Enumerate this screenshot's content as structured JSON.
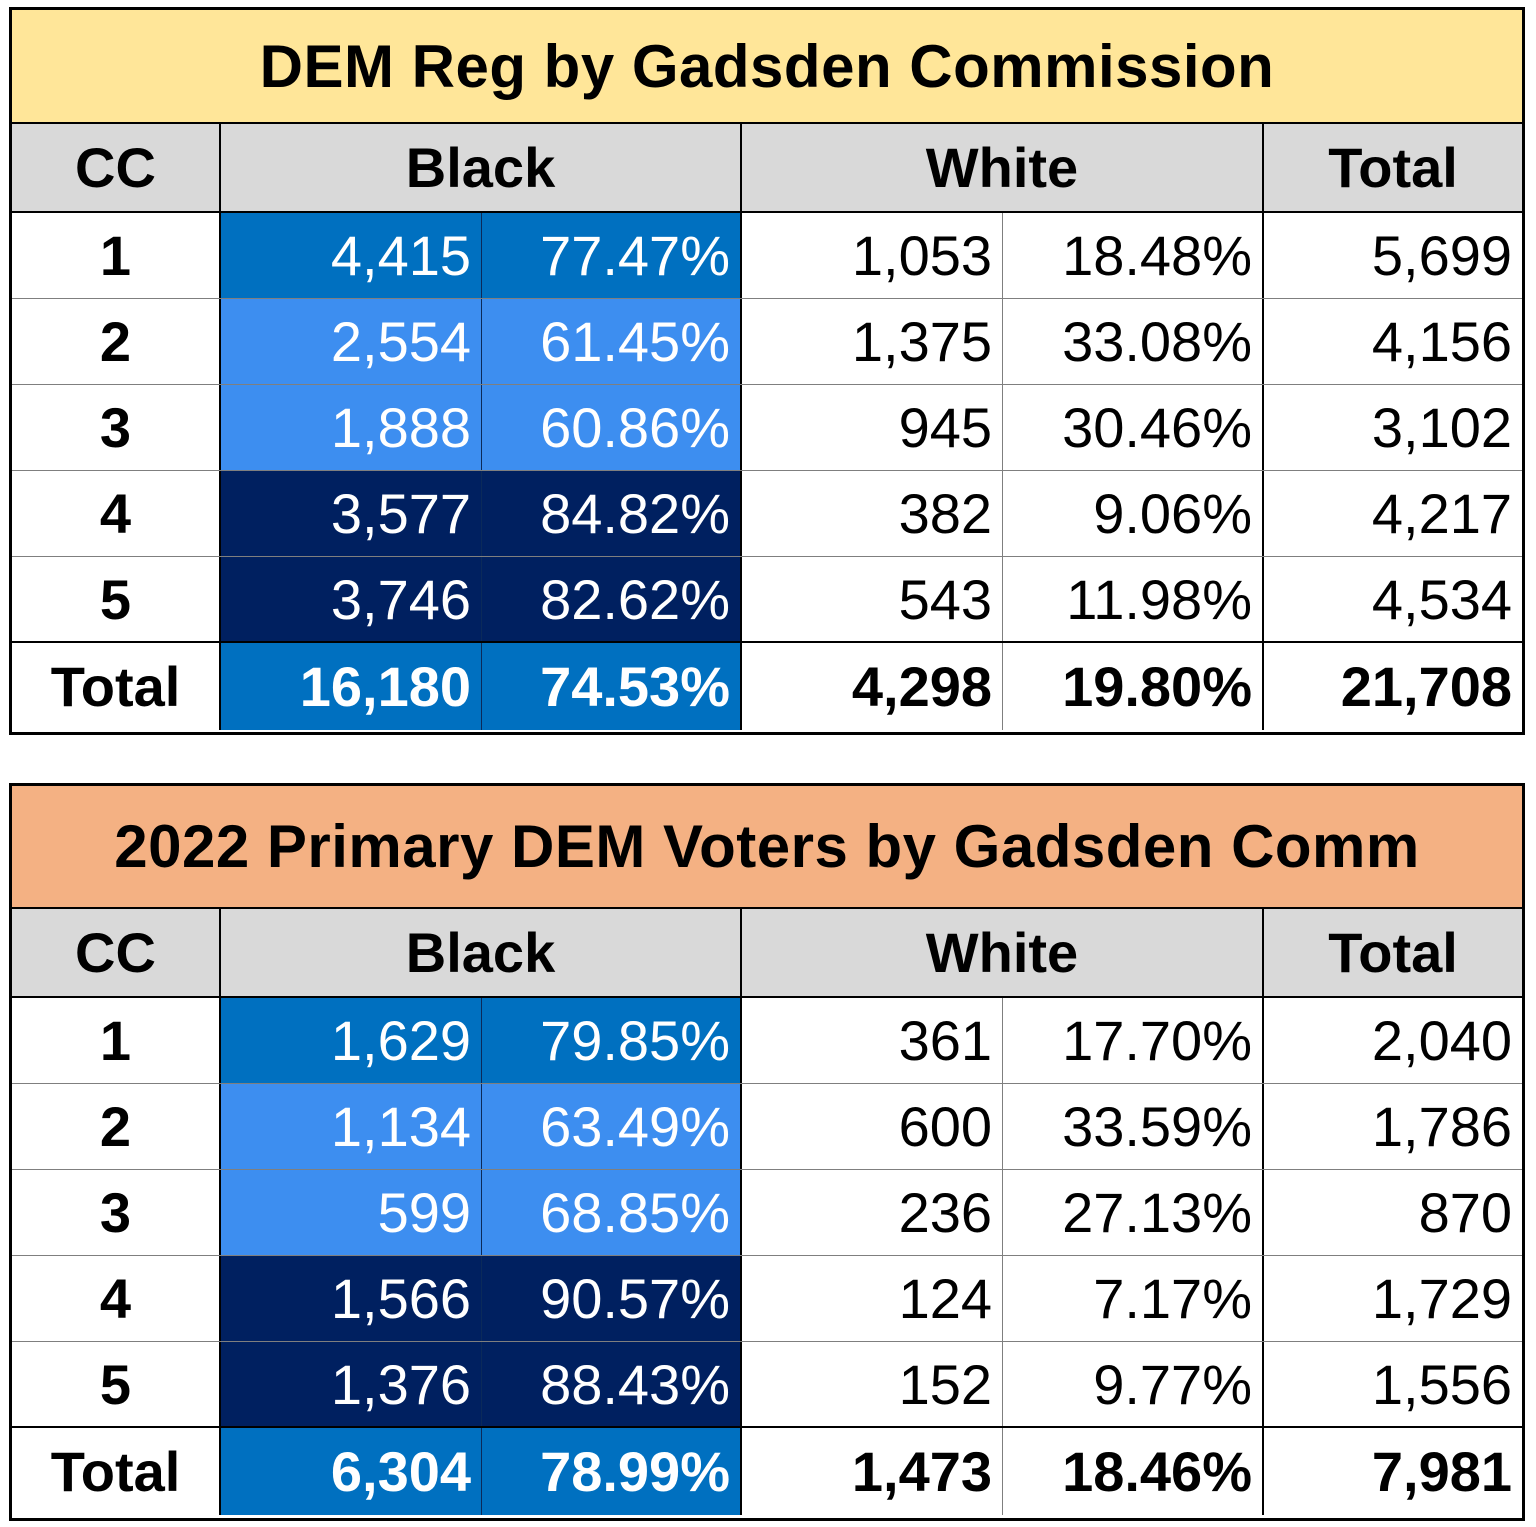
{
  "colors": {
    "title_reg_bg": "#ffe699",
    "title_primary_bg": "#f4b183",
    "header_bg": "#d9d9d9",
    "blue_mid": "#0070c0",
    "blue_light": "#3d8ef0",
    "blue_dark": "#002060"
  },
  "headers": {
    "cc": "CC",
    "black": "Black",
    "white": "White",
    "total": "Total"
  },
  "tables": [
    {
      "title": "DEM Reg by Gadsden Commission",
      "rows": [
        {
          "cc": "1",
          "black": "4,415",
          "black_pct": "77.47%",
          "white": "1,053",
          "white_pct": "18.48%",
          "total": "5,699",
          "shade": "blue_mid"
        },
        {
          "cc": "2",
          "black": "2,554",
          "black_pct": "61.45%",
          "white": "1,375",
          "white_pct": "33.08%",
          "total": "4,156",
          "shade": "blue_light"
        },
        {
          "cc": "3",
          "black": "1,888",
          "black_pct": "60.86%",
          "white": "945",
          "white_pct": "30.46%",
          "total": "3,102",
          "shade": "blue_light"
        },
        {
          "cc": "4",
          "black": "3,577",
          "black_pct": "84.82%",
          "white": "382",
          "white_pct": "9.06%",
          "total": "4,217",
          "shade": "blue_dark"
        },
        {
          "cc": "5",
          "black": "3,746",
          "black_pct": "82.62%",
          "white": "543",
          "white_pct": "11.98%",
          "total": "4,534",
          "shade": "blue_dark"
        }
      ],
      "total": {
        "cc": "Total",
        "black": "16,180",
        "black_pct": "74.53%",
        "white": "4,298",
        "white_pct": "19.80%",
        "total": "21,708",
        "shade": "blue_mid"
      }
    },
    {
      "title": "2022 Primary DEM Voters by Gadsden Comm",
      "rows": [
        {
          "cc": "1",
          "black": "1,629",
          "black_pct": "79.85%",
          "white": "361",
          "white_pct": "17.70%",
          "total": "2,040",
          "shade": "blue_mid"
        },
        {
          "cc": "2",
          "black": "1,134",
          "black_pct": "63.49%",
          "white": "600",
          "white_pct": "33.59%",
          "total": "1,786",
          "shade": "blue_light"
        },
        {
          "cc": "3",
          "black": "599",
          "black_pct": "68.85%",
          "white": "236",
          "white_pct": "27.13%",
          "total": "870",
          "shade": "blue_light"
        },
        {
          "cc": "4",
          "black": "1,566",
          "black_pct": "90.57%",
          "white": "124",
          "white_pct": "7.17%",
          "total": "1,729",
          "shade": "blue_dark"
        },
        {
          "cc": "5",
          "black": "1,376",
          "black_pct": "88.43%",
          "white": "152",
          "white_pct": "9.77%",
          "total": "1,556",
          "shade": "blue_dark"
        }
      ],
      "total": {
        "cc": "Total",
        "black": "6,304",
        "black_pct": "78.99%",
        "white": "1,473",
        "white_pct": "18.46%",
        "total": "7,981",
        "shade": "blue_mid"
      }
    }
  ]
}
